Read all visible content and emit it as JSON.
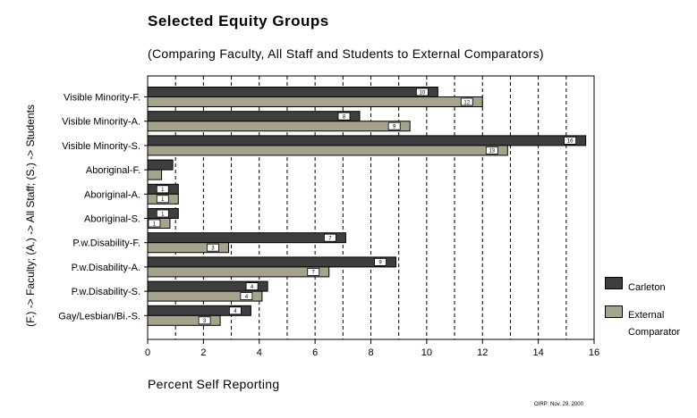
{
  "chart_data": {
    "type": "bar",
    "orientation": "horizontal",
    "title": "Selected Equity Groups",
    "subtitle": "(Comparing Faculty, All Staff and Students to External Comparators)",
    "xlabel": "Percent Self Reporting",
    "ylabel": "(F.) -> Faculty; (A.) -> All Staff; (S.) -> Students",
    "categories": [
      "Visible Minority-F.",
      "Visible Minority-A.",
      "Visible Minority-S.",
      "Aboriginal-F.",
      "Aboriginal-A.",
      "Aboriginal-S.",
      "P.w.Disability-F.",
      "P.w.Disability-A.",
      "P.w.Disability-S.",
      "Gay/Lesbian/Bi.-S."
    ],
    "series": [
      {
        "name": "Carleton",
        "color": "#3e3e3e",
        "values": [
          10.4,
          7.6,
          15.7,
          0.9,
          1.1,
          1.1,
          7.1,
          8.9,
          4.3,
          3.7
        ],
        "labels": [
          "10",
          "8",
          "16",
          "",
          "1",
          "1",
          "7",
          "9",
          "4",
          "4"
        ]
      },
      {
        "name": "External Comparator",
        "color": "#a5a38c",
        "values": [
          12.0,
          9.4,
          12.9,
          0.5,
          1.1,
          0.8,
          2.9,
          6.5,
          4.1,
          2.6
        ],
        "labels": [
          "12",
          "9",
          "13",
          "",
          "1",
          "1",
          "3",
          "7",
          "4",
          "3"
        ]
      }
    ],
    "xlim": [
      0,
      16
    ],
    "xticks": [
      "0",
      "2",
      "4",
      "6",
      "8",
      "10",
      "12",
      "14",
      "16"
    ],
    "grid": "vertical dashed",
    "legend_position": "right"
  },
  "legend": {
    "carleton": "Carleton",
    "external_line1": "External",
    "external_line2": "Comparator"
  },
  "footnote": "OIRP: Nov. 29, 2000"
}
